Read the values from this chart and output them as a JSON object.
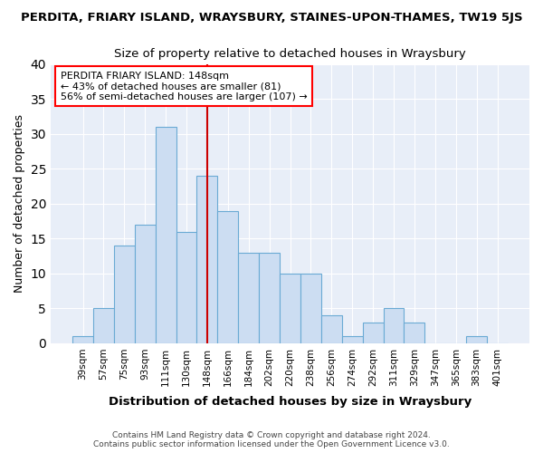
{
  "title_line1": "PERDITA, FRIARY ISLAND, WRAYSBURY, STAINES-UPON-THAMES, TW19 5JS",
  "title_line2": "Size of property relative to detached houses in Wraysbury",
  "xlabel": "Distribution of detached houses by size in Wraysbury",
  "ylabel": "Number of detached properties",
  "categories": [
    "39sqm",
    "57sqm",
    "75sqm",
    "93sqm",
    "111sqm",
    "130sqm",
    "148sqm",
    "166sqm",
    "184sqm",
    "202sqm",
    "220sqm",
    "238sqm",
    "256sqm",
    "274sqm",
    "292sqm",
    "311sqm",
    "329sqm",
    "347sqm",
    "365sqm",
    "383sqm",
    "401sqm"
  ],
  "values": [
    1,
    5,
    14,
    17,
    31,
    16,
    24,
    19,
    13,
    13,
    10,
    10,
    4,
    1,
    3,
    5,
    3,
    0,
    0,
    1,
    0
  ],
  "bar_color": "#ccddf2",
  "bar_edge_color": "#6aaad4",
  "annotation_text_line1": "PERDITA FRIARY ISLAND: 148sqm",
  "annotation_text_line2": "← 43% of detached houses are smaller (81)",
  "annotation_text_line3": "56% of semi-detached houses are larger (107) →",
  "vline_color": "#cc0000",
  "vline_index": 6,
  "ylim": [
    0,
    40
  ],
  "yticks": [
    0,
    5,
    10,
    15,
    20,
    25,
    30,
    35,
    40
  ],
  "background_color": "#e8eef8",
  "grid_color": "#ffffff",
  "fig_background": "#ffffff",
  "footer_line1": "Contains HM Land Registry data © Crown copyright and database right 2024.",
  "footer_line2": "Contains public sector information licensed under the Open Government Licence v3.0."
}
